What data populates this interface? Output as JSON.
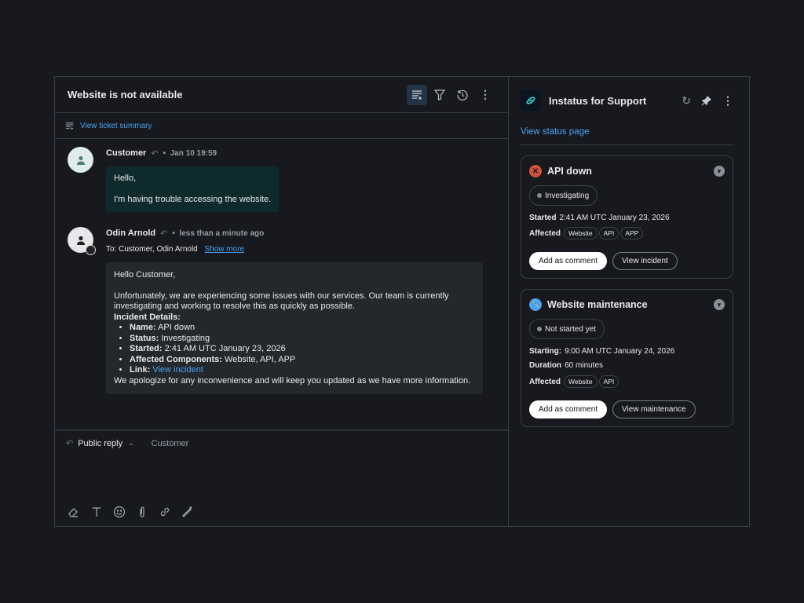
{
  "ticket": {
    "title": "Website is not available",
    "summary_link": "View ticket summary"
  },
  "messages": [
    {
      "author": "Customer",
      "time": "Jan 10 19:59",
      "body": [
        "Hello,",
        "I'm having trouble accessing the website."
      ]
    },
    {
      "author": "Odin Arnold",
      "time": "less than a minute ago",
      "to": "To: Customer, Odin Arnold",
      "show_more": "Show more",
      "greeting": "Hello Customer,",
      "intro": "Unfortunately, we are experiencing some issues with our services. Our team is currently investigating and working to resolve this as quickly as possible.",
      "details_title": "Incident Details:",
      "details": [
        {
          "label": "Name:",
          "value": "API down"
        },
        {
          "label": "Status:",
          "value": "Investigating"
        },
        {
          "label": "Started:",
          "value": "2:41 AM UTC January 23, 2026"
        },
        {
          "label": "Affected Components:",
          "value": "Website, API, APP"
        }
      ],
      "link_label": "Link:",
      "link_text": "View incident",
      "closing": "We apologize for any inconvenience and will keep you updated as we have more information."
    }
  ],
  "reply": {
    "mode": "Public reply",
    "recipient": "Customer"
  },
  "app": {
    "title": "Instatus for Support",
    "status_page_link": "View status page"
  },
  "cards": [
    {
      "title": "API down",
      "icon": "x-circle-icon",
      "icon_color": "#d2513d",
      "status": "Investigating",
      "time_label": "Started",
      "time": "2:41 AM UTC January 23, 2026",
      "affected_label": "Affected",
      "affected": [
        "Website",
        "API",
        "APP"
      ],
      "primary": "Add as comment",
      "secondary": "View incident"
    },
    {
      "title": "Website maintenance",
      "icon": "wrench-icon",
      "icon_color": "#4aa3f0",
      "status": "Not started yet",
      "time_label": "Starting:",
      "time": "9:00 AM UTC January 24, 2026",
      "duration_label": "Duration",
      "duration": "60 minutes",
      "affected_label": "Affected",
      "affected": [
        "Website",
        "API"
      ],
      "primary": "Add as comment",
      "secondary": "View maintenance"
    }
  ],
  "colors": {
    "link": "#4aa3f0",
    "customer_bubble": "#0f2a2c",
    "agent_bubble": "#24272c"
  }
}
